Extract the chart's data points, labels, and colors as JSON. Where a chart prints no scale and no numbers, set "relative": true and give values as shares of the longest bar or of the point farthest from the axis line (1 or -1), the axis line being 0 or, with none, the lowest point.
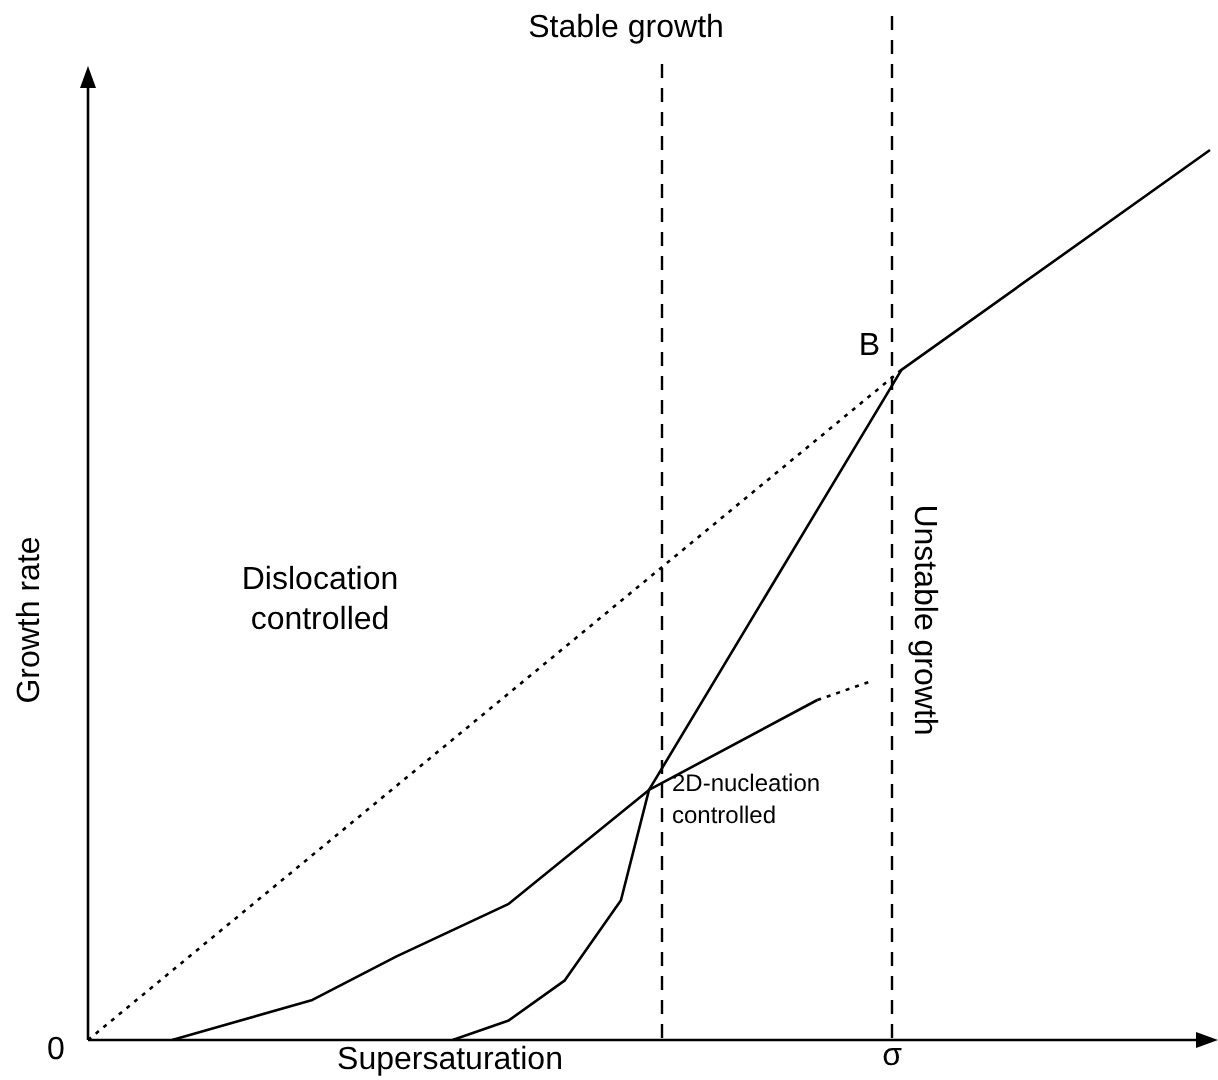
{
  "chart_data": {
    "type": "line",
    "relative": true,
    "xlabel": "Supersaturation",
    "ylabel": "Growth rate",
    "legend": false,
    "grid": false,
    "marker": "none",
    "categories": [
      null,
      null,
      null,
      null,
      null,
      null,
      null,
      null,
      null,
      null,
      null,
      null,
      null,
      null,
      null,
      null,
      null,
      null,
      null,
      null,
      null,
      null,
      null,
      null,
      null,
      null,
      null,
      null,
      null,
      null,
      null,
      null,
      null,
      null,
      null,
      null,
      null,
      null,
      null,
      null,
      null
    ],
    "series": [
      {
        "color": "#000000",
        "line_style": "dotted",
        "values": [
          0,
          null,
          null,
          null,
          null,
          null,
          null,
          null,
          null,
          null,
          null,
          null,
          null,
          null,
          null,
          null,
          null,
          null,
          null,
          null,
          null,
          null,
          null,
          null,
          null,
          null,
          null,
          null,
          null,
          0.753,
          null,
          null,
          null,
          null,
          null,
          null,
          null,
          null,
          null,
          null,
          null
        ]
      },
      {
        "color": "#000000",
        "line_style": "solid",
        "values": [
          null,
          null,
          null,
          0,
          null,
          0.018,
          null,
          null,
          0.045,
          null,
          null,
          0.094,
          null,
          null,
          null,
          0.153,
          null,
          null,
          null,
          null,
          0.281,
          null,
          null,
          null,
          null,
          null,
          0.382,
          null,
          null,
          null,
          null,
          null,
          null,
          null,
          null,
          null,
          null,
          null,
          null,
          null,
          null
        ]
      },
      {
        "color": "#000000",
        "line_style": "dotted",
        "values": [
          null,
          null,
          null,
          null,
          null,
          null,
          null,
          null,
          null,
          null,
          null,
          null,
          null,
          null,
          null,
          null,
          null,
          null,
          null,
          null,
          null,
          null,
          null,
          null,
          null,
          null,
          0.382,
          null,
          0.404,
          null,
          null,
          null,
          null,
          null,
          null,
          null,
          null,
          null,
          null,
          null,
          null
        ]
      },
      {
        "color": "#000000",
        "line_style": "solid",
        "values": [
          null,
          null,
          null,
          null,
          null,
          null,
          null,
          null,
          null,
          null,
          null,
          null,
          null,
          0,
          null,
          0.022,
          null,
          0.067,
          null,
          0.157,
          0.281,
          null,
          null,
          null,
          null,
          null,
          null,
          null,
          null,
          0.753,
          null,
          null,
          null,
          null,
          null,
          null,
          null,
          null,
          null,
          null,
          1.0
        ]
      }
    ],
    "annotations": [
      "Stable growth",
      "Unstable growth",
      "B",
      "Dislocation controlled",
      "2D-nucleation controlled",
      "0",
      "σ"
    ]
  }
}
